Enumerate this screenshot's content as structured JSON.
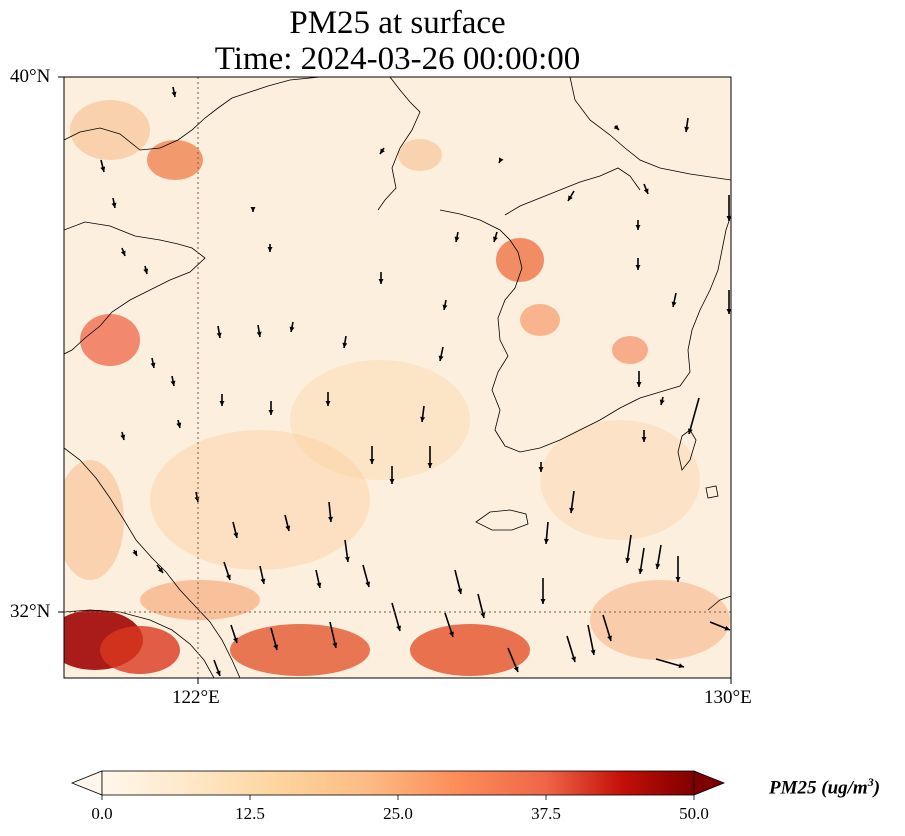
{
  "title": {
    "line1": "PM25 at surface",
    "line2": "Time: 2024-03-26 00:00:00"
  },
  "map": {
    "lon_range": [
      119,
      130
    ],
    "lat_range": [
      31,
      40
    ],
    "lat_ticks": [
      {
        "value": 40,
        "label": "40°N"
      },
      {
        "value": 32,
        "label": "32°N"
      }
    ],
    "lon_ticks": [
      {
        "value": 122,
        "label": "122°E"
      },
      {
        "value": 130,
        "label": "130°E"
      }
    ],
    "gridlines": "dotted",
    "field": "PM25 surface concentration",
    "overlay": "wind-vectors"
  },
  "colorbar": {
    "colormap": "OrRd",
    "min": 0.0,
    "max": 50.0,
    "extend": "both",
    "ticks": [
      "0.0",
      "12.5",
      "25.0",
      "37.5",
      "50.0"
    ],
    "label_main": "PM25 (ug/m",
    "label_sup": "3",
    "label_end": ")"
  }
}
